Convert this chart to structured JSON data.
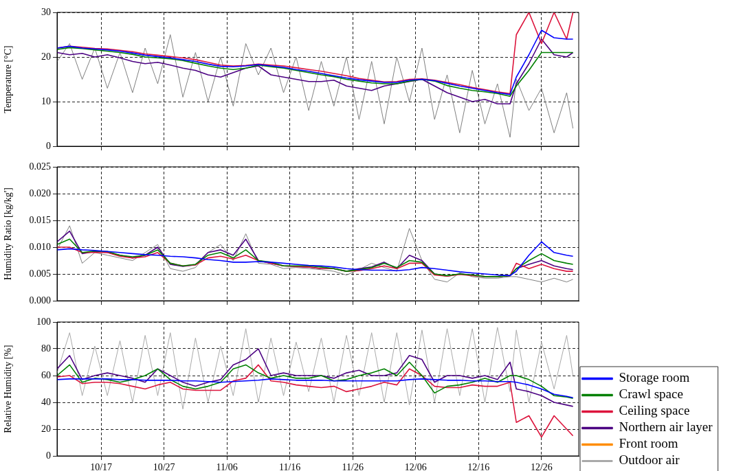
{
  "chart_data": [
    {
      "type": "line",
      "ylabel": "Temperature [°C]",
      "xlim": [
        "--10-10",
        "--12-31T22:00"
      ],
      "xticks": [
        "--10-17",
        "--10-27",
        "--11-06",
        "--11-16",
        "--11-26",
        "--12-06",
        "--12-16",
        "--12-26"
      ],
      "ylim": [
        0,
        30
      ],
      "yticks": [
        0,
        10,
        20,
        30
      ],
      "grid": true,
      "legend": false,
      "tick_labels": "y",
      "marker": "none",
      "x": [
        "--10-10",
        "--10-12",
        "--10-14",
        "--10-16",
        "--10-18",
        "--10-20",
        "--10-22",
        "--10-24",
        "--10-26",
        "--10-28",
        "--10-30",
        "--11-01",
        "--11-03",
        "--11-05",
        "--11-07",
        "--11-09",
        "--11-11",
        "--11-13",
        "--11-15",
        "--11-17",
        "--11-19",
        "--11-21",
        "--11-23",
        "--11-25",
        "--11-27",
        "--11-29",
        "--12-01",
        "--12-03",
        "--12-05",
        "--12-07",
        "--12-09",
        "--12-11",
        "--12-13",
        "--12-15",
        "--12-17",
        "--12-19",
        "--12-21",
        "--12-22",
        "--12-24",
        "--12-26",
        "--12-28",
        "--12-30",
        "--12-31"
      ],
      "series": [
        {
          "color": "#0000ff",
          "values": [
            22,
            22.4,
            22,
            21.8,
            21.6,
            21.3,
            20.9,
            20.4,
            20.1,
            19.8,
            19.4,
            19,
            18.4,
            17.9,
            17.8,
            18,
            18.3,
            18,
            17.7,
            17.2,
            16.8,
            16.3,
            15.8,
            15.3,
            14.9,
            14.6,
            14.3,
            14.3,
            14.8,
            15,
            14.7,
            14.1,
            13.5,
            13,
            12.5,
            12,
            11.6,
            15.5,
            20.5,
            26,
            24.3,
            24,
            24
          ]
        },
        {
          "color": "#008000",
          "values": [
            21.7,
            22.1,
            21.9,
            21.6,
            21.3,
            21,
            20.6,
            20,
            19.8,
            19.6,
            19.2,
            18.6,
            18,
            17.5,
            17.2,
            17.5,
            18.2,
            17.8,
            17.5,
            17,
            16.5,
            16,
            15.6,
            15,
            14.6,
            14.2,
            14,
            14,
            14.6,
            15,
            14.6,
            13.6,
            13,
            12.5,
            12.2,
            11.8,
            11.2,
            13.5,
            17,
            21,
            21,
            21,
            21
          ]
        },
        {
          "color": "#dc143c",
          "values": [
            22,
            22.4,
            22.2,
            21.9,
            21.8,
            21.5,
            21.2,
            20.7,
            20.4,
            20.1,
            19.8,
            19.4,
            18.8,
            18.2,
            18,
            18.1,
            18.4,
            18.2,
            18,
            17.6,
            17.2,
            16.8,
            16.3,
            15.8,
            15.2,
            14.8,
            14.4,
            14.5,
            15,
            15.1,
            14.8,
            14.3,
            13.8,
            13.2,
            12.7,
            12.2,
            11.8,
            25,
            30,
            23,
            30,
            24,
            30
          ]
        },
        {
          "color": "#4b0082",
          "values": [
            21,
            20.5,
            20.8,
            20,
            20.5,
            19.8,
            19,
            18.5,
            18.8,
            18.2,
            17.5,
            17,
            16,
            15.5,
            16.5,
            17.5,
            18,
            16,
            15.5,
            15,
            14.5,
            14.5,
            14.8,
            13.5,
            13,
            12.5,
            13.5,
            14,
            14.5,
            15,
            13.5,
            12,
            11,
            10,
            10.5,
            9.5,
            9.5,
            14,
            18.5,
            24,
            20.5,
            20,
            21
          ]
        },
        {
          "color": "#808080",
          "values": [
            19,
            23,
            15,
            22,
            13,
            21,
            12,
            22,
            14,
            25,
            11,
            21,
            10,
            20,
            9,
            23,
            16,
            22,
            12,
            20,
            8,
            19,
            9,
            20,
            6,
            19,
            5,
            20,
            10,
            22,
            6,
            16,
            3,
            17,
            5,
            14,
            2,
            15,
            8,
            13,
            3,
            12,
            4
          ]
        }
      ]
    },
    {
      "type": "line",
      "ylabel": "Humidity Ratio [kg/kg']",
      "xlim": [
        "--10-10",
        "--12-31T22:00"
      ],
      "xticks": [
        "--10-17",
        "--10-27",
        "--11-06",
        "--11-16",
        "--11-26",
        "--12-06",
        "--12-16",
        "--12-26"
      ],
      "ylim": [
        0,
        0.025
      ],
      "yticks": [
        {
          "value": 0,
          "label": "0.000"
        },
        {
          "value": 0.005,
          "label": "0.005"
        },
        {
          "value": 0.01,
          "label": "0.010"
        },
        {
          "value": 0.015,
          "label": "0.015"
        },
        {
          "value": 0.02,
          "label": "0.020"
        },
        {
          "value": 0.025,
          "label": "0.025"
        }
      ],
      "grid": true,
      "legend": false,
      "tick_labels": "y",
      "marker": "none",
      "x": [
        "--10-10",
        "--10-12",
        "--10-14",
        "--10-16",
        "--10-18",
        "--10-20",
        "--10-22",
        "--10-24",
        "--10-26",
        "--10-28",
        "--10-30",
        "--11-01",
        "--11-03",
        "--11-05",
        "--11-07",
        "--11-09",
        "--11-11",
        "--11-13",
        "--11-15",
        "--11-17",
        "--11-19",
        "--11-21",
        "--11-23",
        "--11-25",
        "--11-27",
        "--11-29",
        "--12-01",
        "--12-03",
        "--12-05",
        "--12-07",
        "--12-09",
        "--12-11",
        "--12-13",
        "--12-15",
        "--12-17",
        "--12-19",
        "--12-21",
        "--12-22",
        "--12-24",
        "--12-26",
        "--12-28",
        "--12-30",
        "--12-31"
      ],
      "series": [
        {
          "color": "#0000ff",
          "values": [
            0.0095,
            0.0097,
            0.0095,
            0.0094,
            0.0092,
            0.009,
            0.0088,
            0.0086,
            0.0085,
            0.0083,
            0.0082,
            0.008,
            0.0077,
            0.0075,
            0.0072,
            0.0072,
            0.0073,
            0.0072,
            0.007,
            0.0068,
            0.0066,
            0.0065,
            0.0063,
            0.006,
            0.0058,
            0.0057,
            0.0057,
            0.0056,
            0.0058,
            0.0062,
            0.006,
            0.0057,
            0.0054,
            0.0052,
            0.005,
            0.0048,
            0.0047,
            0.0055,
            0.0085,
            0.011,
            0.009,
            0.0085,
            0.0083
          ]
        },
        {
          "color": "#008000",
          "values": [
            0.0105,
            0.0115,
            0.009,
            0.0093,
            0.0092,
            0.0085,
            0.0082,
            0.0085,
            0.0095,
            0.007,
            0.0065,
            0.0068,
            0.0085,
            0.009,
            0.008,
            0.0095,
            0.0075,
            0.0072,
            0.0065,
            0.0065,
            0.0065,
            0.0063,
            0.006,
            0.0055,
            0.0058,
            0.0062,
            0.007,
            0.0062,
            0.0075,
            0.0072,
            0.005,
            0.0047,
            0.005,
            0.0048,
            0.0045,
            0.0045,
            0.0047,
            0.006,
            0.0075,
            0.0088,
            0.0075,
            0.007,
            0.0068
          ]
        },
        {
          "color": "#dc143c",
          "values": [
            0.01,
            0.01,
            0.009,
            0.009,
            0.009,
            0.0083,
            0.008,
            0.0082,
            0.009,
            0.007,
            0.0065,
            0.0067,
            0.008,
            0.0083,
            0.0078,
            0.0085,
            0.0075,
            0.007,
            0.0065,
            0.0064,
            0.0063,
            0.006,
            0.006,
            0.0055,
            0.0056,
            0.006,
            0.0065,
            0.006,
            0.007,
            0.007,
            0.0048,
            0.0046,
            0.0049,
            0.0047,
            0.0045,
            0.0045,
            0.0047,
            0.007,
            0.006,
            0.0068,
            0.006,
            0.0055,
            0.0055
          ]
        },
        {
          "color": "#4b0082",
          "values": [
            0.011,
            0.013,
            0.0088,
            0.0092,
            0.009,
            0.0085,
            0.008,
            0.0085,
            0.01,
            0.0068,
            0.0064,
            0.0067,
            0.009,
            0.0095,
            0.0085,
            0.0115,
            0.0075,
            0.007,
            0.0065,
            0.0064,
            0.0063,
            0.006,
            0.006,
            0.0055,
            0.006,
            0.0063,
            0.0072,
            0.006,
            0.0085,
            0.0075,
            0.005,
            0.0046,
            0.005,
            0.0048,
            0.0045,
            0.0045,
            0.0047,
            0.006,
            0.0068,
            0.0075,
            0.0065,
            0.006,
            0.0058
          ]
        },
        {
          "color": "#808080",
          "values": [
            0.0095,
            0.014,
            0.007,
            0.009,
            0.0085,
            0.008,
            0.0075,
            0.009,
            0.0105,
            0.006,
            0.0055,
            0.0062,
            0.009,
            0.0105,
            0.0075,
            0.0125,
            0.007,
            0.0068,
            0.006,
            0.0062,
            0.006,
            0.0058,
            0.0055,
            0.0048,
            0.0058,
            0.007,
            0.0062,
            0.0055,
            0.0135,
            0.0075,
            0.004,
            0.0035,
            0.0052,
            0.0045,
            0.0042,
            0.0042,
            0.0045,
            0.0045,
            0.004,
            0.0035,
            0.0042,
            0.0035,
            0.004
          ]
        }
      ]
    },
    {
      "type": "line",
      "ylabel": "Relative Humidity [%]",
      "xlim": [
        "--10-10",
        "--12-31T22:00"
      ],
      "xticks": [
        {
          "value": "--10-17",
          "label": "10/17"
        },
        {
          "value": "--10-27",
          "label": "10/27"
        },
        {
          "value": "--11-06",
          "label": "11/06"
        },
        {
          "value": "--11-16",
          "label": "11/16"
        },
        {
          "value": "--11-26",
          "label": "11/26"
        },
        {
          "value": "--12-06",
          "label": "12/06"
        },
        {
          "value": "--12-16",
          "label": "12/16"
        },
        {
          "value": "--12-26",
          "label": "12/26"
        }
      ],
      "ylim": [
        0,
        100
      ],
      "yticks": [
        0,
        20,
        40,
        60,
        80,
        100
      ],
      "grid": true,
      "legend": "right",
      "marker": "none",
      "x": [
        "--10-10",
        "--10-12",
        "--10-14",
        "--10-16",
        "--10-18",
        "--10-20",
        "--10-22",
        "--10-24",
        "--10-26",
        "--10-28",
        "--10-30",
        "--11-01",
        "--11-03",
        "--11-05",
        "--11-07",
        "--11-09",
        "--11-11",
        "--11-13",
        "--11-15",
        "--11-17",
        "--11-19",
        "--11-21",
        "--11-23",
        "--11-25",
        "--11-27",
        "--11-29",
        "--12-01",
        "--12-03",
        "--12-05",
        "--12-07",
        "--12-09",
        "--12-11",
        "--12-13",
        "--12-15",
        "--12-17",
        "--12-19",
        "--12-21",
        "--12-22",
        "--12-24",
        "--12-26",
        "--12-28",
        "--12-30",
        "--12-31"
      ],
      "series": [
        {
          "name": "Storage room",
          "color": "#0000ff",
          "values": [
            57,
            57.5,
            57.5,
            57.5,
            57.5,
            57,
            57,
            56.5,
            56.5,
            56.5,
            56,
            56,
            55.5,
            55,
            55.5,
            56,
            56.5,
            57.5,
            57,
            56.5,
            56.5,
            56.5,
            56,
            56,
            56,
            56,
            56,
            56,
            57,
            57.5,
            57,
            56.5,
            56.5,
            56,
            56,
            55.5,
            55.5,
            55,
            53,
            50,
            46,
            44.5,
            43.5
          ]
        },
        {
          "name": "Crawl space",
          "color": "#008000",
          "values": [
            60,
            68,
            55,
            58,
            57,
            55,
            57,
            60,
            65,
            57,
            52,
            50,
            52,
            55,
            65,
            68,
            62,
            58,
            60,
            58,
            58,
            60,
            56,
            57,
            60,
            62,
            65,
            60,
            70,
            60,
            47,
            52,
            53,
            55,
            58,
            55,
            60,
            60,
            57,
            52,
            45,
            44,
            43
          ]
        },
        {
          "name": "Ceiling space",
          "color": "#dc143c",
          "values": [
            59,
            60,
            54,
            55,
            55,
            54,
            52,
            50,
            53,
            55,
            50,
            49,
            49,
            49,
            56,
            58,
            68,
            56,
            55,
            53,
            52,
            51,
            52,
            48,
            50,
            52,
            55,
            53,
            65,
            60,
            52,
            51,
            51,
            53,
            52,
            52,
            55,
            25,
            30,
            14,
            30,
            20,
            15
          ]
        },
        {
          "name": "Northern air layer",
          "color": "#4b0082",
          "values": [
            65,
            75,
            57,
            60,
            62,
            60,
            58,
            55,
            65,
            60,
            55,
            52,
            55,
            57,
            68,
            72,
            80,
            60,
            62,
            60,
            60,
            60,
            58,
            62,
            64,
            60,
            60,
            62,
            75,
            72,
            55,
            60,
            60,
            58,
            60,
            57,
            70,
            50,
            48,
            45,
            40,
            38,
            37
          ]
        },
        {
          "name": "Front room",
          "color": "#ff8c00",
          "values": [
            null,
            null,
            null,
            null,
            null,
            null,
            null,
            null,
            null,
            null,
            null,
            null,
            null,
            null,
            null,
            null,
            null,
            null,
            null,
            null,
            null,
            null,
            null,
            null,
            null,
            null,
            null,
            null,
            null,
            null,
            null,
            null,
            null,
            null,
            null,
            null,
            null,
            null,
            null,
            null,
            null,
            null,
            null
          ]
        },
        {
          "name": "Outdoor air",
          "color": "#a9a9a9",
          "values": [
            62,
            92,
            45,
            82,
            45,
            86,
            40,
            90,
            45,
            92,
            35,
            88,
            40,
            82,
            45,
            95,
            40,
            88,
            45,
            85,
            48,
            88,
            40,
            90,
            45,
            92,
            40,
            92,
            38,
            94,
            40,
            95,
            45,
            95,
            40,
            96,
            48,
            94,
            40,
            85,
            50,
            90,
            60
          ]
        }
      ]
    }
  ]
}
